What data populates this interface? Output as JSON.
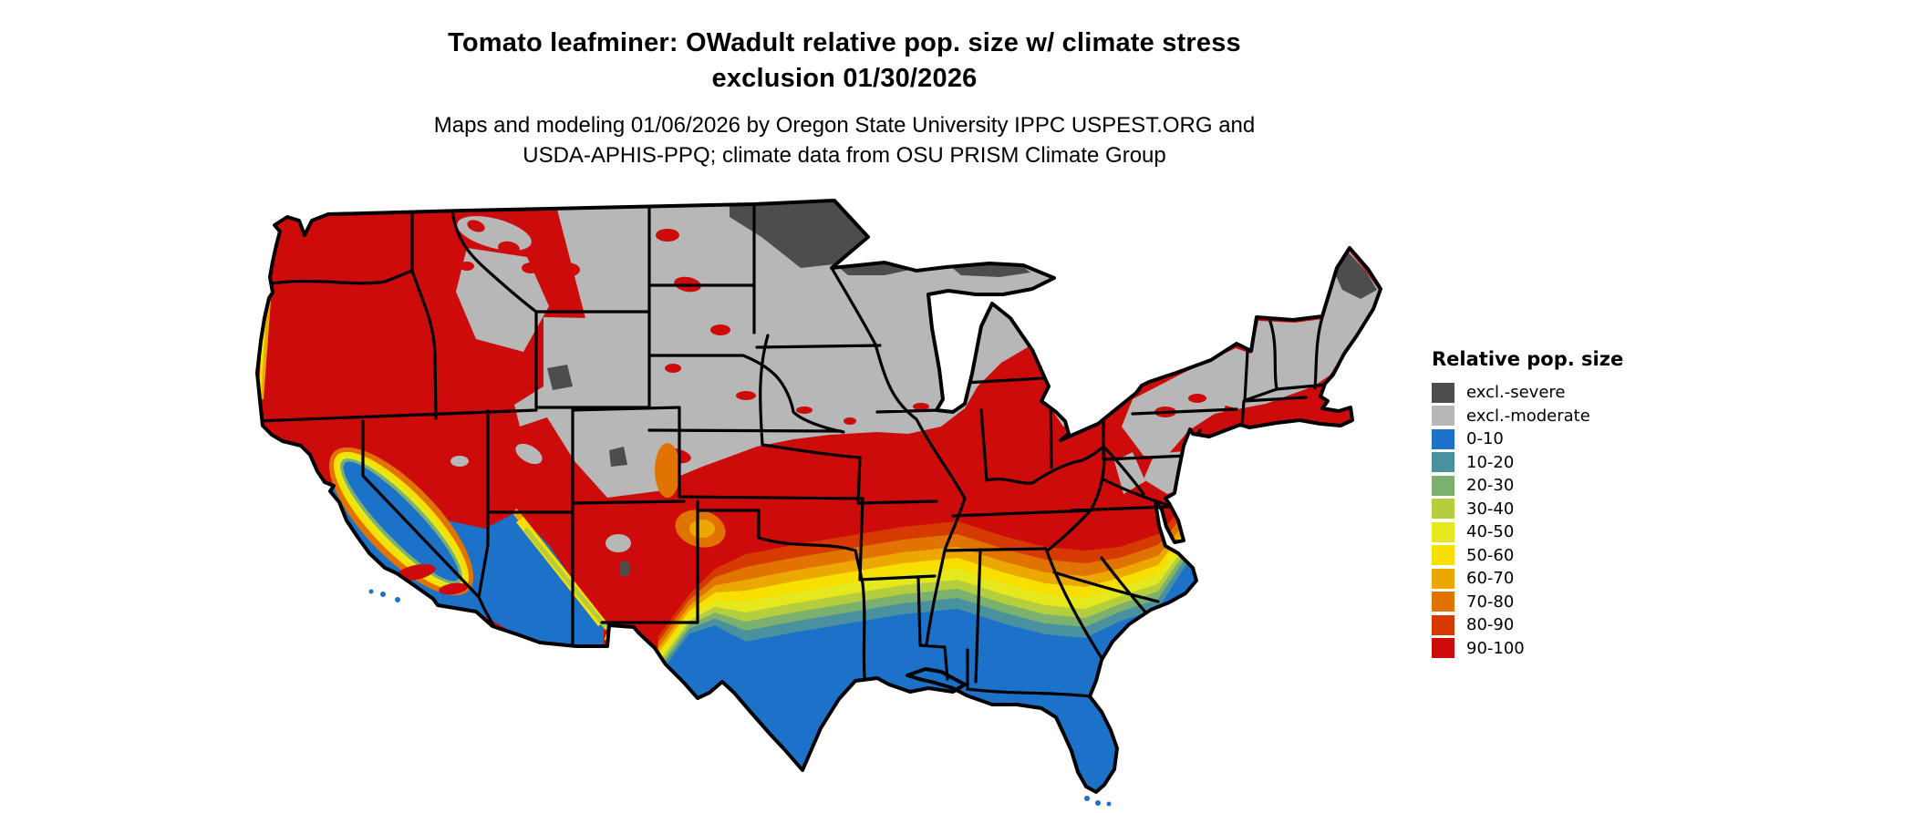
{
  "title": {
    "line1": "Tomato leafminer: OWadult relative pop. size w/ climate stress",
    "line2": "exclusion 01/30/2026"
  },
  "subtitle": {
    "line1": "Maps and modeling 01/06/2026 by Oregon State University IPPC USPEST.ORG and",
    "line2": "USDA-APHIS-PPQ; climate data from OSU PRISM Climate Group"
  },
  "legend": {
    "title": "Relative pop. size",
    "items": [
      {
        "label": "excl.-severe",
        "key": "excl_severe"
      },
      {
        "label": "excl.-moderate",
        "key": "excl_moderate"
      },
      {
        "label": "0-10",
        "key": "p0_10"
      },
      {
        "label": "10-20",
        "key": "p10_20"
      },
      {
        "label": "20-30",
        "key": "p20_30"
      },
      {
        "label": "30-40",
        "key": "p30_40"
      },
      {
        "label": "40-50",
        "key": "p40_50"
      },
      {
        "label": "50-60",
        "key": "p50_60"
      },
      {
        "label": "60-70",
        "key": "p60_70"
      },
      {
        "label": "70-80",
        "key": "p70_80"
      },
      {
        "label": "80-90",
        "key": "p80_90"
      },
      {
        "label": "90-100",
        "key": "p90_100"
      }
    ]
  },
  "map": {
    "region": "Contiguous United States",
    "description": "Choropleth raster map of relative population size of tomato leafminer with climate stress exclusion; northern states excluded (gray), mid-latitudes high relative population (red), southern states grading through orange, yellow and green to blue (low).",
    "border_color": "#000000",
    "background_color": "#ffffff",
    "palette": {
      "excl_severe": "#4D4D4D",
      "excl_moderate": "#B7B7B7",
      "p0_10": "#1B72C8",
      "p10_20": "#4A91A0",
      "p20_30": "#7BB06E",
      "p30_40": "#B5CE3E",
      "p40_50": "#E6E81E",
      "p50_60": "#F7DF00",
      "p60_70": "#ECA800",
      "p70_80": "#E17300",
      "p80_90": "#D63A00",
      "p90_100": "#CE0B0B"
    }
  }
}
